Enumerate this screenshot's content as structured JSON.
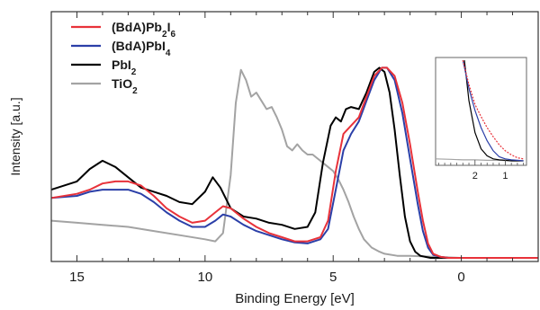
{
  "chart_data": {
    "type": "line",
    "xlabel": "Binding Energy [eV]",
    "ylabel": "Intensity [a.u.]",
    "xlim": [
      16,
      -3
    ],
    "ylim": [
      0,
      1
    ],
    "x_reversed": true,
    "x_ticks": [
      15,
      10,
      5,
      0
    ],
    "grid": false,
    "legend_position": "top-left",
    "series": [
      {
        "name": "(BdA)Pb2I6",
        "legend": {
          "base": "(BdA)Pb",
          "sub1": "2",
          "mid": "I",
          "sub2": "6"
        },
        "color": "#e8323a",
        "x": [
          16,
          15,
          14.5,
          14,
          13.5,
          13,
          12.5,
          12,
          11.5,
          11,
          10.5,
          10,
          9.6,
          9.3,
          9,
          8.5,
          8,
          7.5,
          7,
          6.5,
          6,
          5.5,
          5.2,
          4.9,
          4.6,
          4.3,
          4,
          3.7,
          3.4,
          3.1,
          2.9,
          2.6,
          2.3,
          2,
          1.7,
          1.5,
          1.3,
          1.1,
          0.8,
          0.5,
          0,
          -1,
          -2,
          -3
        ],
        "y": [
          0.29,
          0.31,
          0.33,
          0.36,
          0.37,
          0.37,
          0.35,
          0.3,
          0.24,
          0.2,
          0.17,
          0.18,
          0.22,
          0.25,
          0.24,
          0.19,
          0.15,
          0.12,
          0.1,
          0.08,
          0.08,
          0.1,
          0.18,
          0.42,
          0.6,
          0.64,
          0.68,
          0.78,
          0.88,
          0.92,
          0.92,
          0.88,
          0.75,
          0.55,
          0.32,
          0.18,
          0.07,
          0.02,
          0.005,
          0,
          0,
          0,
          0,
          0
        ]
      },
      {
        "name": "(BdA)PbI4",
        "legend": {
          "base": "(BdA)PbI",
          "sub1": "",
          "mid": "",
          "sub2": "4"
        },
        "color": "#2b3fa8",
        "x": [
          16,
          15,
          14.5,
          14,
          13.5,
          13,
          12.5,
          12,
          11.5,
          11,
          10.5,
          10,
          9.6,
          9.3,
          9,
          8.5,
          8,
          7.5,
          7,
          6.5,
          6,
          5.5,
          5.2,
          4.9,
          4.6,
          4.3,
          4,
          3.7,
          3.4,
          3.1,
          2.9,
          2.6,
          2.3,
          2,
          1.7,
          1.5,
          1.3,
          1.1,
          0.8,
          0.5,
          0,
          -1,
          -2,
          -3
        ],
        "y": [
          0.29,
          0.3,
          0.32,
          0.33,
          0.33,
          0.33,
          0.31,
          0.27,
          0.22,
          0.18,
          0.15,
          0.15,
          0.18,
          0.21,
          0.2,
          0.16,
          0.13,
          0.11,
          0.09,
          0.075,
          0.07,
          0.09,
          0.14,
          0.33,
          0.52,
          0.6,
          0.66,
          0.76,
          0.86,
          0.92,
          0.92,
          0.86,
          0.7,
          0.48,
          0.26,
          0.13,
          0.05,
          0.015,
          0.005,
          0,
          0,
          0,
          0,
          0
        ]
      },
      {
        "name": "PbI2",
        "legend": {
          "base": "PbI",
          "sub1": "",
          "mid": "",
          "sub2": "2"
        },
        "color": "#000000",
        "x": [
          16,
          15,
          14.5,
          14,
          13.5,
          13,
          12.5,
          12,
          11.5,
          11,
          10.5,
          10,
          9.7,
          9.4,
          9,
          8.5,
          8,
          7.5,
          7,
          6.5,
          6,
          5.7,
          5.4,
          5.1,
          4.9,
          4.7,
          4.5,
          4.3,
          4,
          3.7,
          3.4,
          3.2,
          3,
          2.8,
          2.6,
          2.4,
          2.2,
          2,
          1.8,
          1.6,
          1.4,
          1.2,
          1,
          0.5,
          0,
          -1,
          -2,
          -3
        ],
        "y": [
          0.33,
          0.37,
          0.43,
          0.47,
          0.44,
          0.39,
          0.34,
          0.32,
          0.3,
          0.27,
          0.26,
          0.32,
          0.39,
          0.34,
          0.24,
          0.2,
          0.19,
          0.17,
          0.16,
          0.14,
          0.15,
          0.22,
          0.46,
          0.64,
          0.68,
          0.66,
          0.72,
          0.73,
          0.72,
          0.8,
          0.9,
          0.92,
          0.9,
          0.8,
          0.62,
          0.4,
          0.2,
          0.08,
          0.03,
          0.01,
          0.005,
          0,
          0,
          0,
          0,
          0,
          0,
          0
        ]
      },
      {
        "name": "TiO2",
        "legend": {
          "base": "TiO",
          "sub1": "",
          "mid": "",
          "sub2": "2"
        },
        "color": "#a3a3a3",
        "x": [
          16,
          15,
          14,
          13,
          12,
          11,
          10,
          9.6,
          9.3,
          9,
          8.8,
          8.6,
          8.4,
          8.2,
          8,
          7.8,
          7.6,
          7.4,
          7.2,
          7,
          6.8,
          6.6,
          6.4,
          6.2,
          6,
          5.8,
          5.6,
          5.4,
          5.2,
          5,
          4.8,
          4.6,
          4.4,
          4.2,
          4,
          3.8,
          3.5,
          3.2,
          3,
          2.5,
          2,
          1,
          0,
          -1,
          -2,
          -3
        ],
        "y": [
          0.18,
          0.17,
          0.16,
          0.15,
          0.13,
          0.11,
          0.09,
          0.08,
          0.12,
          0.4,
          0.75,
          0.91,
          0.86,
          0.78,
          0.8,
          0.76,
          0.72,
          0.73,
          0.68,
          0.62,
          0.54,
          0.52,
          0.55,
          0.52,
          0.5,
          0.5,
          0.48,
          0.46,
          0.44,
          0.42,
          0.38,
          0.33,
          0.27,
          0.2,
          0.14,
          0.09,
          0.05,
          0.03,
          0.02,
          0.01,
          0.01,
          0.005,
          0,
          0,
          0,
          0
        ]
      }
    ],
    "inset": {
      "type": "line",
      "xlim": [
        3.3,
        0.3
      ],
      "x_ticks": [
        2,
        1
      ],
      "x_minor_ticks": [
        3.2,
        3.0,
        2.8,
        2.6,
        2.4,
        2.2,
        1.8,
        1.6,
        1.4,
        1.2,
        0.8,
        0.6,
        0.4
      ],
      "series": [
        {
          "name": "(BdA)Pb2I6",
          "color": "#e8323a",
          "x": [
            2.4,
            2.2,
            2.0,
            1.8,
            1.6,
            1.4,
            1.2,
            1.0,
            0.8,
            0.6,
            0.4
          ],
          "y": [
            1.0,
            0.76,
            0.56,
            0.44,
            0.33,
            0.24,
            0.16,
            0.1,
            0.06,
            0.03,
            0.02
          ]
        },
        {
          "name": "(BdA)PbI4",
          "color": "#2b3fa8",
          "x": [
            2.4,
            2.2,
            2.0,
            1.8,
            1.6,
            1.4,
            1.2,
            1.0,
            0.8,
            0.6,
            0.4
          ],
          "y": [
            1.0,
            0.72,
            0.5,
            0.33,
            0.2,
            0.1,
            0.04,
            0.02,
            0.01,
            0.005,
            0
          ]
        },
        {
          "name": "PbI2",
          "color": "#000000",
          "x": [
            2.35,
            2.2,
            2.0,
            1.8,
            1.6,
            1.4,
            1.2,
            1.0,
            0.8,
            0.6,
            0.4
          ],
          "y": [
            1.0,
            0.6,
            0.28,
            0.12,
            0.05,
            0.02,
            0.01,
            0.005,
            0,
            0,
            0
          ]
        },
        {
          "name": "TiO2",
          "color": "#a3a3a3",
          "x": [
            3.3,
            2.8,
            2.4,
            2.0,
            1.6,
            1.2,
            0.8,
            0.4
          ],
          "y": [
            0.02,
            0.015,
            0.01,
            0.01,
            0.005,
            0.005,
            0,
            0
          ]
        }
      ]
    }
  }
}
